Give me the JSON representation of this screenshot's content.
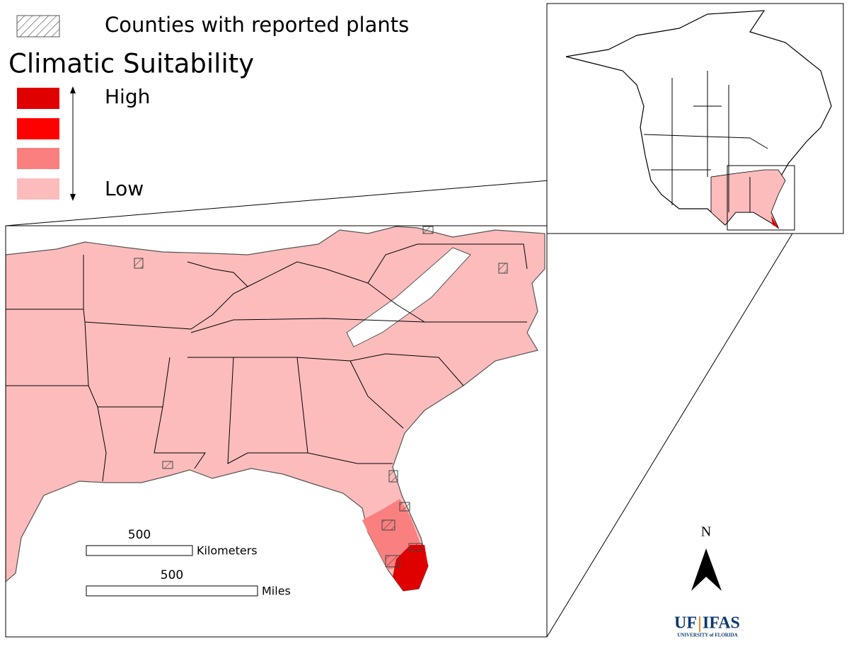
{
  "legend": {
    "hatch_label": "Counties with reported plants",
    "title": "Climatic Suitability",
    "high": "High",
    "low": "Low"
  },
  "scale_bars": [
    {
      "value": 500,
      "unit": "Kilometers"
    },
    {
      "value": 500,
      "unit": "Miles"
    }
  ],
  "north_arrow": "N",
  "logo": {
    "uf": "UF",
    "ifas": "IFAS",
    "university": "UNIVERSITY of FLORIDA"
  }
}
